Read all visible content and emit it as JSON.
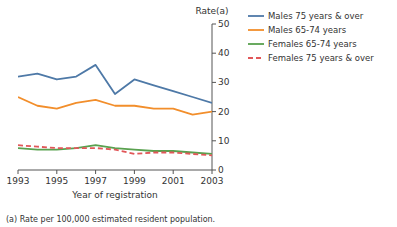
{
  "chart_data": {
    "type": "line",
    "xlabel": "Year of registration",
    "ylabel": "Rate(a)",
    "annotations": [
      "(a) Rate per 100,000 estimated resident population."
    ],
    "x": [
      1993,
      1994,
      1995,
      1996,
      1997,
      1998,
      1999,
      2000,
      2001,
      2002,
      2003
    ],
    "series": [
      {
        "name": "Males 75 years & over",
        "color": "#4e79a7",
        "line_style": "solid",
        "values": [
          32,
          33,
          31,
          32,
          36,
          26,
          31,
          29,
          27,
          25,
          23
        ]
      },
      {
        "name": "Males 65-74 years",
        "color": "#f28e2b",
        "line_style": "solid",
        "values": [
          25,
          22,
          21,
          23,
          24,
          22,
          22,
          21,
          21,
          19,
          20
        ]
      },
      {
        "name": "Females 65-74 years",
        "color": "#59a14f",
        "line_style": "solid",
        "values": [
          7.5,
          7.0,
          7.0,
          7.5,
          8.5,
          7.5,
          7.0,
          6.5,
          6.5,
          6.0,
          5.5
        ]
      },
      {
        "name": "Females 75 years & over",
        "color": "#e15759",
        "line_style": "dashed",
        "values": [
          8.5,
          8.0,
          7.5,
          7.5,
          7.5,
          7.0,
          5.5,
          6.0,
          6.0,
          5.5,
          5.0
        ]
      }
    ],
    "xlim": [
      1993,
      2003
    ],
    "xticks": [
      1993,
      1995,
      1997,
      1999,
      2001,
      2003
    ],
    "ylim": [
      0,
      50
    ],
    "yticks": [
      0,
      10,
      20,
      30,
      40,
      50
    ],
    "grid": false,
    "legend": "right"
  }
}
